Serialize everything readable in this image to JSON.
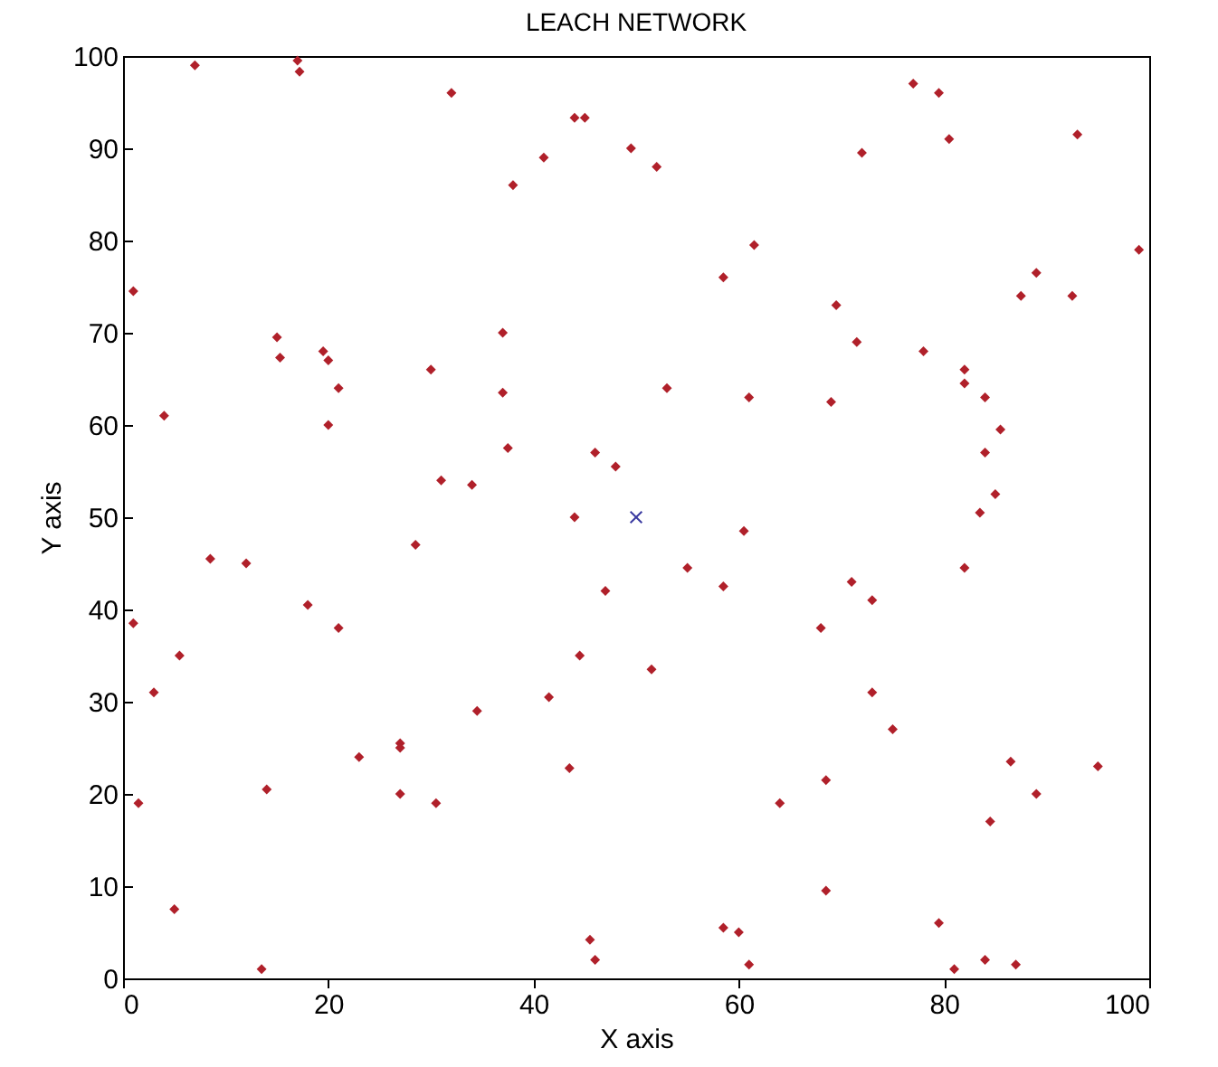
{
  "chart_data": {
    "type": "scatter",
    "title": "LEACH NETWORK",
    "xlabel": "X axis",
    "ylabel": "Y axis",
    "xlim": [
      0,
      100
    ],
    "xticks": [
      0,
      20,
      40,
      60,
      80,
      100
    ],
    "ylim": [
      0,
      100
    ],
    "yticks": [
      0,
      10,
      20,
      30,
      40,
      50,
      60,
      70,
      80,
      90,
      100
    ],
    "grid": false,
    "series": [
      {
        "color": "#b0202a",
        "marker": "diamond",
        "x": [
          1,
          1,
          1.5,
          3,
          4,
          5,
          5.5,
          7,
          8.5,
          12,
          13.5,
          14,
          15,
          15.3,
          17,
          17.2,
          18,
          19.5,
          20,
          20,
          21,
          21,
          23,
          27,
          27,
          27,
          28.5,
          30,
          30.5,
          31,
          32,
          34,
          34.5,
          37,
          37,
          37.5,
          38,
          41,
          41.5,
          43.5,
          44,
          44,
          45,
          44.5,
          45.5,
          46,
          46,
          47,
          48,
          49.5,
          51.5,
          52,
          53,
          55,
          58.5,
          58.5,
          58.5,
          60,
          60.5,
          61,
          61,
          61.5,
          64,
          68,
          68.5,
          68.5,
          69,
          69.5,
          71,
          71.5,
          72,
          73,
          73,
          75,
          77,
          78,
          79.5,
          79.5,
          80.5,
          81,
          82,
          82,
          82,
          83.5,
          84,
          84,
          84,
          84.5,
          85,
          85.5,
          86.5,
          87,
          87.5,
          89,
          89,
          92.5,
          93,
          95,
          99
        ],
        "values": [
          74.5,
          38.5,
          19,
          31,
          61,
          7.5,
          35,
          99,
          45.5,
          45,
          1,
          20.5,
          69.5,
          67.3,
          99.5,
          98.3,
          40.5,
          68,
          67,
          60,
          38,
          64,
          24,
          25.5,
          25,
          20,
          47,
          66,
          19,
          54,
          96,
          53.5,
          29,
          70,
          63.5,
          57.5,
          86,
          89,
          30.5,
          22.8,
          50,
          93.3,
          93.3,
          35,
          4.2,
          2,
          57,
          42,
          55.5,
          90,
          33.5,
          88,
          64,
          44.5,
          42.5,
          76,
          5.5,
          5,
          48.5,
          63,
          1.5,
          79.5,
          19,
          38,
          21.5,
          9.5,
          62.5,
          73,
          43,
          69,
          89.5,
          41,
          31,
          27,
          97,
          68,
          96,
          6,
          91,
          1,
          66,
          64.5,
          44.5,
          50.5,
          63,
          57,
          2,
          17,
          52.5,
          59.5,
          23.5,
          1.5,
          74,
          76.5,
          20,
          74,
          91.5,
          23,
          79
        ]
      },
      {
        "color": "#3a3aa0",
        "marker": "cross",
        "x": [
          50
        ],
        "values": [
          50
        ]
      }
    ]
  }
}
